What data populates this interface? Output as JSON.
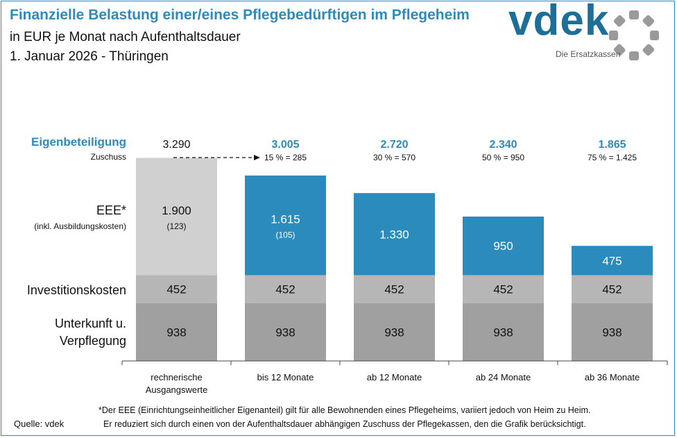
{
  "header": {
    "title": "Finanzielle Belastung einer/eines Pflegebedürftigen im Pflegeheim",
    "subtitle_1": "in EUR je Monat nach Aufenthaltsdauer",
    "subtitle_2": "1. Januar 2026 - Thüringen"
  },
  "logo": {
    "text": "vdek",
    "tagline": "Die Ersatzkassen"
  },
  "row_labels": {
    "eigenbeteiligung": "Eigenbeteiligung",
    "zuschuss": "Zuschuss",
    "eee": "EEE*",
    "eee_sub": "(inkl. Ausbildungskosten)",
    "invest": "Investitionskosten",
    "unterkunft_1": "Unterkunft u.",
    "unterkunft_2": "Verpflegung"
  },
  "colors": {
    "blue": "#2b8bbd",
    "base_light": "#d0d0d0",
    "invest_gray": "#b6b6b6",
    "unterkunft_gray": "#a0a0a0",
    "accent_text": "#2e8ab8"
  },
  "chart_data": {
    "type": "bar",
    "stacked": true,
    "categories": [
      "rechnerische\nAusgangswerte",
      "bis 12 Monate",
      "ab 12 Monate",
      "ab 24 Monate",
      "ab 36 Monate"
    ],
    "series": [
      {
        "name": "Unterkunft u. Verpflegung",
        "values": [
          938,
          938,
          938,
          938,
          938
        ],
        "labels": [
          "938",
          "938",
          "938",
          "938",
          "938"
        ]
      },
      {
        "name": "Investitionskosten",
        "values": [
          452,
          452,
          452,
          452,
          452
        ],
        "labels": [
          "452",
          "452",
          "452",
          "452",
          "452"
        ]
      },
      {
        "name": "EEE* (inkl. Ausbildungskosten)",
        "values": [
          1900,
          1615,
          1330,
          950,
          475
        ],
        "labels": [
          "1.900",
          "1.615",
          "1.330",
          "950",
          "475"
        ],
        "sub_labels": [
          "(123)",
          "(105)",
          "",
          "",
          ""
        ]
      }
    ],
    "eigenbeteiligung": [
      "3.290",
      "3.005",
      "2.720",
      "2.340",
      "1.865"
    ],
    "zuschuss": [
      "",
      "15 % = 285",
      "30 % = 570",
      "50 % = 950",
      "75 % = 1.425"
    ],
    "ylim": [
      0,
      3290
    ],
    "grid": false,
    "legend": "none"
  },
  "footnote": {
    "line_1": "*Der EEE (Einrichtungseinheitlicher  Eigenanteil) gilt für alle Bewohnenden eines Pflegeheims, variiert jedoch von Heim zu Heim.",
    "line_2": "Er reduziert sich durch einen von der Aufenthaltsdauer abhängigen Zuschuss der Pflegekassen, den die Grafik berücksichtigt."
  },
  "source": "Quelle: vdek"
}
